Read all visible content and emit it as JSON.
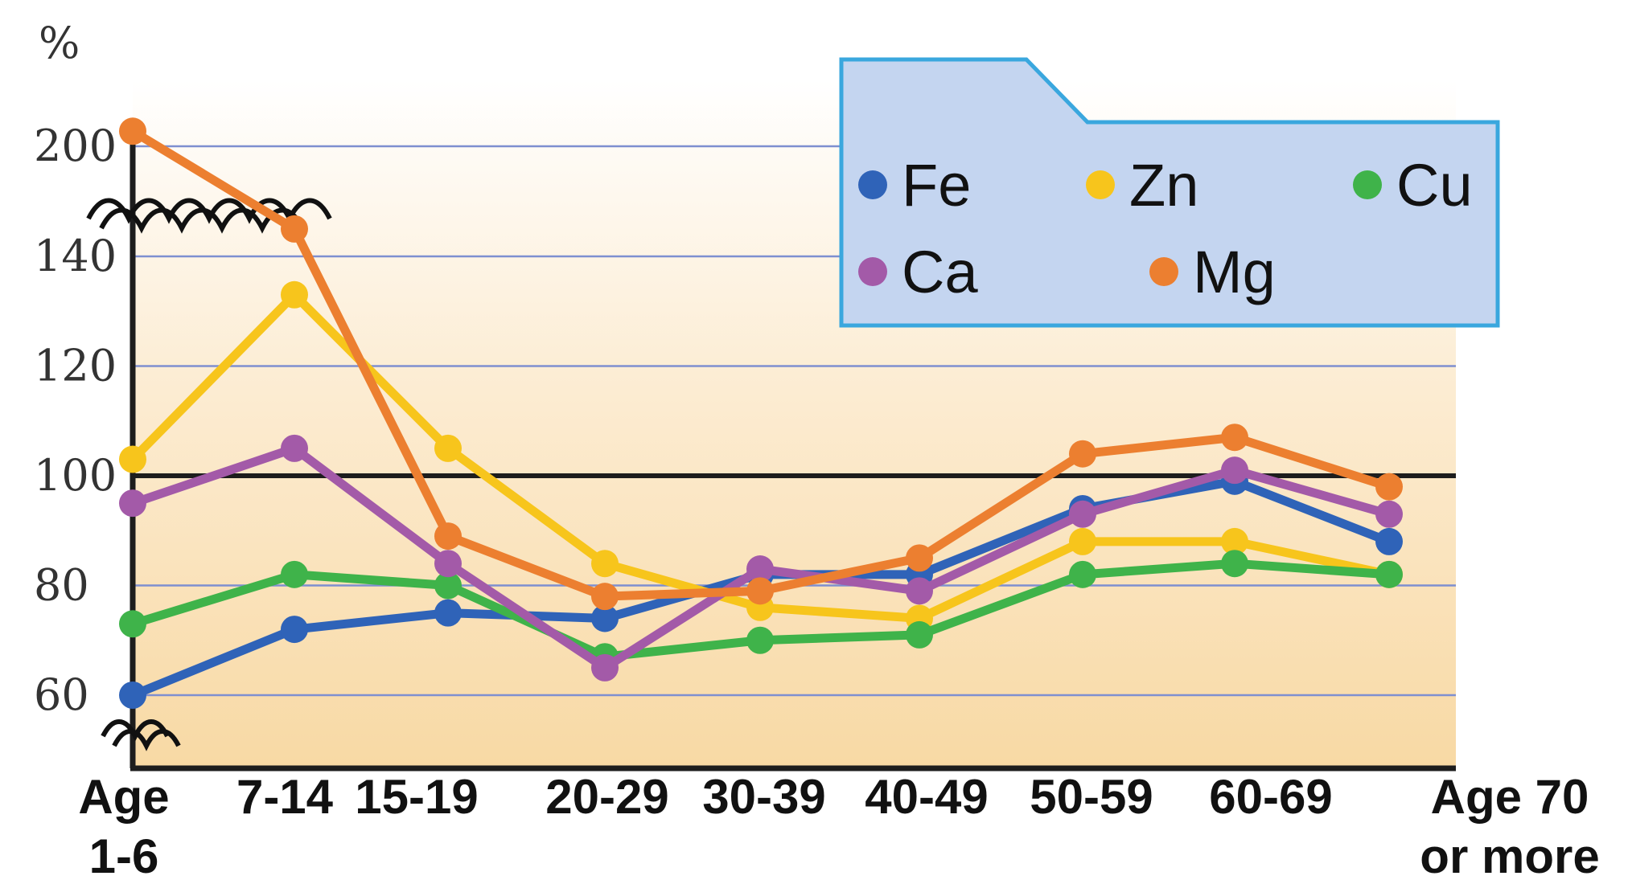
{
  "chart_data": {
    "type": "line",
    "unit_label": "%",
    "x_categories": [
      [
        "Age",
        "1-6"
      ],
      [
        "7-14"
      ],
      [
        "15-19"
      ],
      [
        "20-29"
      ],
      [
        "30-39"
      ],
      [
        "40-49"
      ],
      [
        "50-59"
      ],
      [
        "60-69"
      ],
      [
        "Age 70",
        "or more"
      ]
    ],
    "y_ticks": [
      "200",
      "140",
      "120",
      "100",
      "80",
      "60"
    ],
    "ylim_lower": [
      50,
      145
    ],
    "ylim_upper_break": [
      145,
      200
    ],
    "axis_break": true,
    "grid": true,
    "legend_position": "top-right",
    "series": [
      {
        "name": "Fe",
        "color": "#2f63b8",
        "values": [
          60,
          72,
          75,
          74,
          82,
          82,
          94,
          99,
          88
        ]
      },
      {
        "name": "Zn",
        "color": "#f7c51c",
        "values": [
          103,
          133,
          105,
          84,
          76,
          74,
          88,
          88,
          82
        ]
      },
      {
        "name": "Cu",
        "color": "#3fb34a",
        "values": [
          73,
          82,
          80,
          67,
          70,
          71,
          82,
          84,
          82
        ]
      },
      {
        "name": "Ca",
        "color": "#a35aa8",
        "values": [
          95,
          105,
          84,
          65,
          83,
          79,
          93,
          101,
          93
        ]
      },
      {
        "name": "Mg",
        "color": "#ec7f30",
        "values": [
          210,
          145,
          89,
          78,
          79,
          85,
          104,
          107,
          98
        ]
      }
    ]
  }
}
